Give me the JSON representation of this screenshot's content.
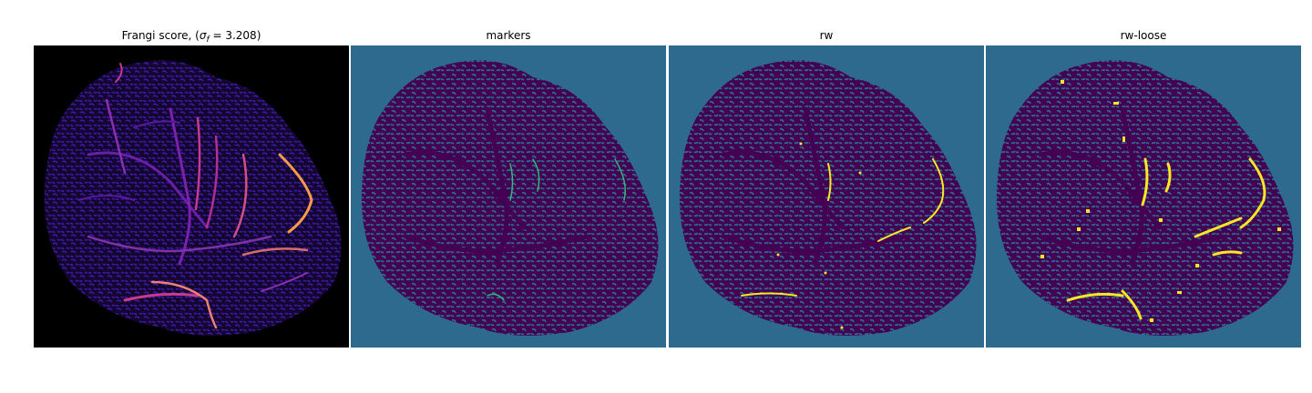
{
  "figure": {
    "panels": [
      {
        "id": "frangi",
        "title_prefix": "Frangi score, (",
        "title_sigma": "σ",
        "title_sub": "f",
        "title_suffix": " = 3.208)"
      },
      {
        "id": "markers",
        "title": "markers"
      },
      {
        "id": "rw",
        "title": "rw"
      },
      {
        "id": "rw-loose",
        "title": "rw-loose"
      }
    ]
  },
  "colors": {
    "background_black": "#000000",
    "label_bg": "#2d6a8e",
    "label_tissue": "#440154",
    "marker_green": "#35b779",
    "vessel_yellow": "#fde725",
    "frangi_blue": "#2a0a8a",
    "frangi_purple": "#6a1fa6",
    "frangi_magenta": "#c73a8c",
    "frangi_orange": "#f99b4a"
  }
}
